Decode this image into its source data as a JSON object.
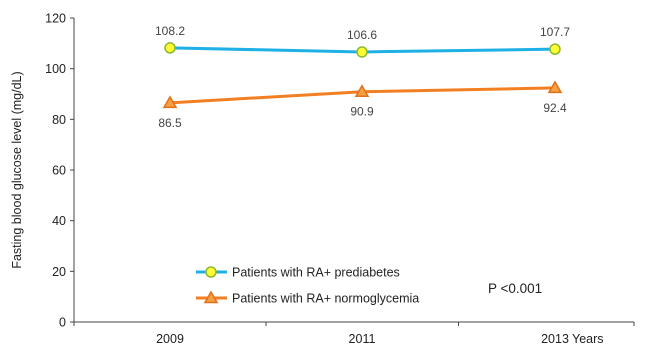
{
  "chart_data": {
    "type": "line",
    "ylabel": "Fasting blood glucose level (mg/dL)",
    "xlabel": "Years",
    "categories": [
      "2009",
      "2011",
      "2013"
    ],
    "ylim": [
      0,
      120
    ],
    "yticks": [
      "0",
      "20",
      "40",
      "60",
      "80",
      "100",
      "120"
    ],
    "grid": false,
    "legend_position": "bottom-left",
    "annotation": "P <0.001",
    "series": [
      {
        "name": "Patients with RA+ prediabetes",
        "values": [
          108.2,
          106.6,
          107.7
        ],
        "labels": [
          "108.2",
          "106.6",
          "107.7"
        ],
        "line_color": "#1fb0e6",
        "marker": "circle",
        "marker_fill": "#ffff33",
        "marker_stroke": "#8db82e",
        "label_position": "above"
      },
      {
        "name": "Patients with RA+ normoglycemia",
        "values": [
          86.5,
          90.9,
          92.4
        ],
        "labels": [
          "86.5",
          "90.9",
          "92.4"
        ],
        "line_color": "#f28022",
        "marker": "triangle",
        "marker_fill": "#f5a040",
        "marker_stroke": "#e0701a",
        "label_position": "below"
      }
    ]
  }
}
